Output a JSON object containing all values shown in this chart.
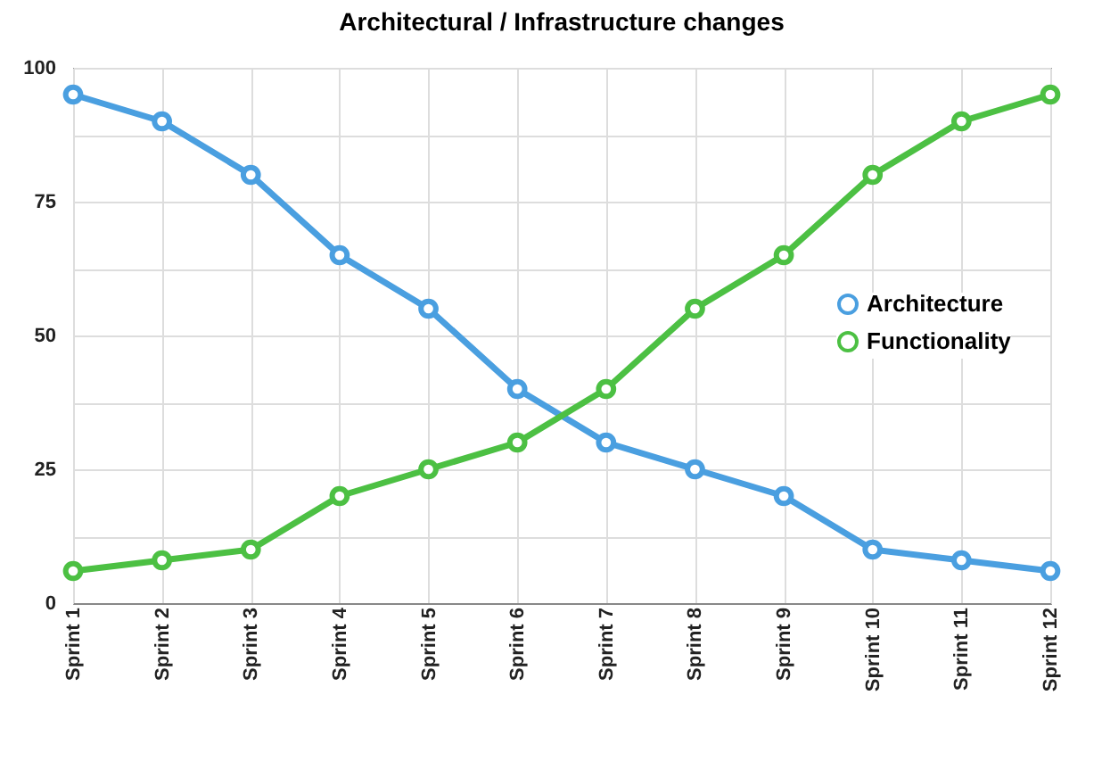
{
  "chart_data": {
    "type": "line",
    "title": "Architectural / Infrastructure changes",
    "categories": [
      "Sprint 1",
      "Sprint 2",
      "Sprint 3",
      "Sprint 4",
      "Sprint 5",
      "Sprint 6",
      "Sprint 7",
      "Sprint 8",
      "Sprint 9",
      "Sprint 10",
      "Sprint 11",
      "Sprint 12"
    ],
    "series": [
      {
        "name": "Architecture",
        "color": "#4a9fe0",
        "values": [
          95,
          90,
          80,
          65,
          55,
          40,
          30,
          25,
          20,
          10,
          8,
          6
        ]
      },
      {
        "name": "Functionality",
        "color": "#4cc043",
        "values": [
          6,
          8,
          10,
          20,
          25,
          30,
          40,
          55,
          65,
          80,
          90,
          95
        ]
      }
    ],
    "ylim": [
      0,
      100
    ],
    "yticks": [
      0,
      {
        "value": 12.5,
        "label": null
      },
      25,
      {
        "value": 37.5,
        "label": null
      },
      50,
      {
        "value": 62.5,
        "label": null
      },
      75,
      {
        "value": 87.5,
        "label": null
      },
      100
    ],
    "grid": true,
    "legend": "right",
    "marker": "circle",
    "line_style": "solid"
  }
}
